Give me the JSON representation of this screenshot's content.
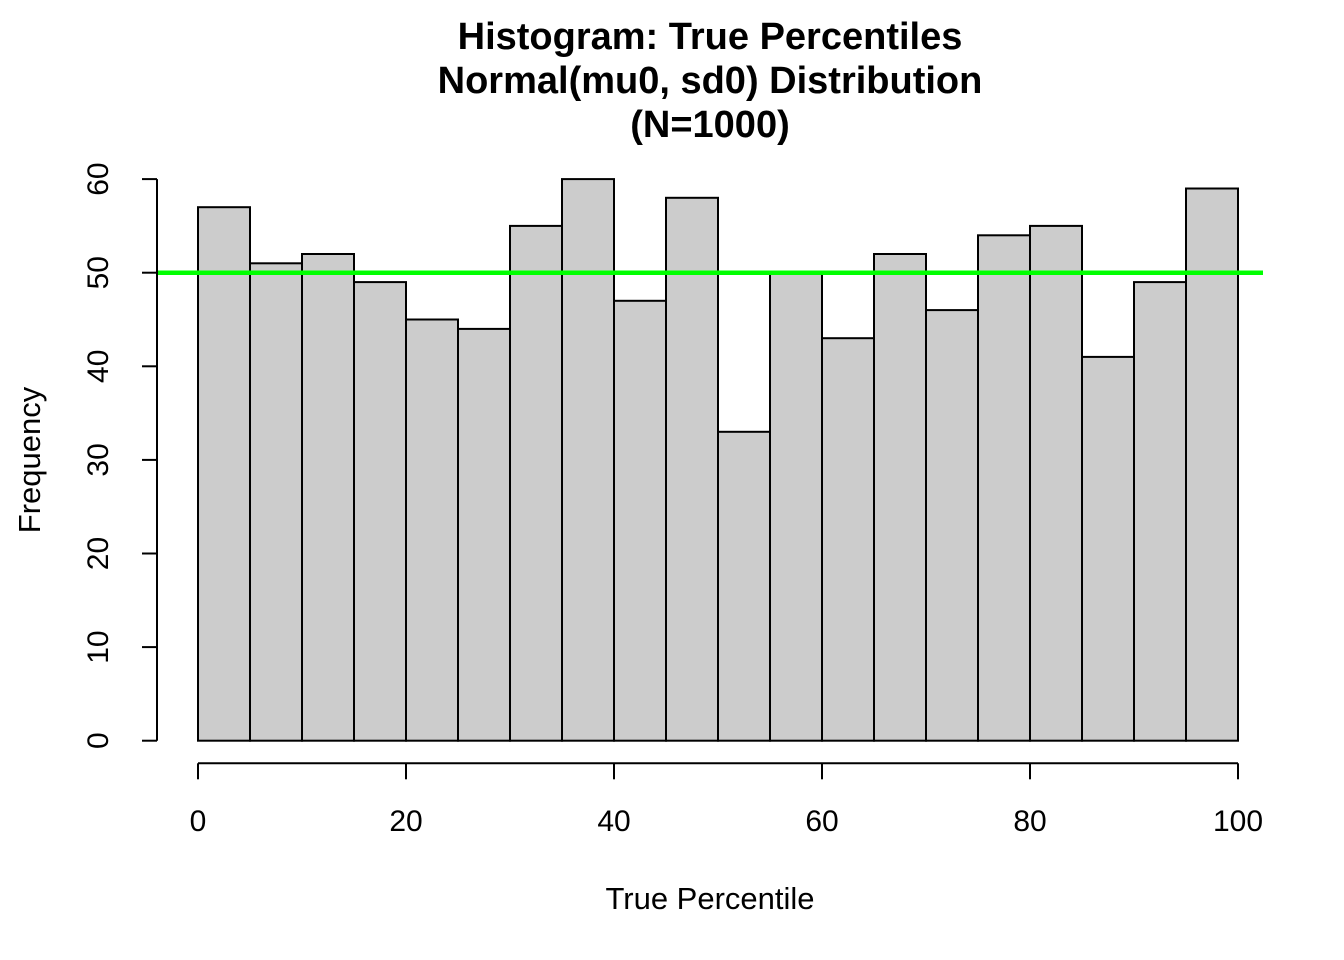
{
  "figure": {
    "background": "#FFFFFF",
    "text_color": "#000000"
  },
  "chart_data": {
    "type": "histogram",
    "title_lines": [
      "Histogram: True Percentiles",
      "Normal(mu0, sd0) Distribution",
      "(N=1000)"
    ],
    "xlabel": "True Percentile",
    "ylabel": "Frequency",
    "n_total": 1000,
    "bin_start": 0,
    "bin_width": 5,
    "bin_edges": [
      0,
      5,
      10,
      15,
      20,
      25,
      30,
      35,
      40,
      45,
      50,
      55,
      60,
      65,
      70,
      75,
      80,
      85,
      90,
      95,
      100
    ],
    "counts": [
      57,
      51,
      52,
      49,
      45,
      44,
      55,
      60,
      47,
      58,
      33,
      50,
      43,
      52,
      46,
      54,
      55,
      41,
      49,
      59
    ],
    "xlim": [
      0,
      100
    ],
    "ylim": [
      0,
      60
    ],
    "x_ticks": [
      0,
      20,
      40,
      60,
      80,
      100
    ],
    "y_ticks": [
      0,
      10,
      20,
      30,
      40,
      50,
      60
    ],
    "grid": false,
    "reference_line": {
      "value": 50,
      "color": "#00FF00"
    },
    "bar_fill": "#CCCCCC",
    "bar_border": "#000000",
    "axis_color": "#000000"
  }
}
